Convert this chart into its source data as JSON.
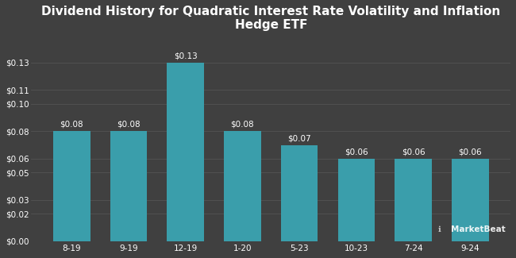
{
  "title_line1": "Dividend History for Quadratic Interest Rate Volatility and Inflation",
  "title_line2": "Hedge ETF",
  "categories": [
    "8-19",
    "9-19",
    "12-19",
    "1-20",
    "5-23",
    "10-23",
    "7-24",
    "9-24"
  ],
  "values": [
    0.08,
    0.08,
    0.13,
    0.08,
    0.07,
    0.06,
    0.06,
    0.06
  ],
  "bar_labels": [
    "$0.08",
    "$0.08",
    "$0.13",
    "$0.08",
    "$0.07",
    "$0.06",
    "$0.06",
    "$0.06"
  ],
  "bar_color": "#3a9eab",
  "background_color": "#404040",
  "text_color": "#ffffff",
  "grid_color": "#585858",
  "yticks": [
    0.0,
    0.02,
    0.03,
    0.05,
    0.06,
    0.08,
    0.1,
    0.11,
    0.13
  ],
  "ytick_labels": [
    "$0.00",
    "$0.02",
    "$0.03",
    "$0.05",
    "$0.06",
    "$0.08",
    "$0.10",
    "$0.11",
    "$0.13"
  ],
  "ylim": [
    0,
    0.148
  ],
  "title_fontsize": 11,
  "tick_fontsize": 7.5,
  "bar_label_fontsize": 7.5
}
